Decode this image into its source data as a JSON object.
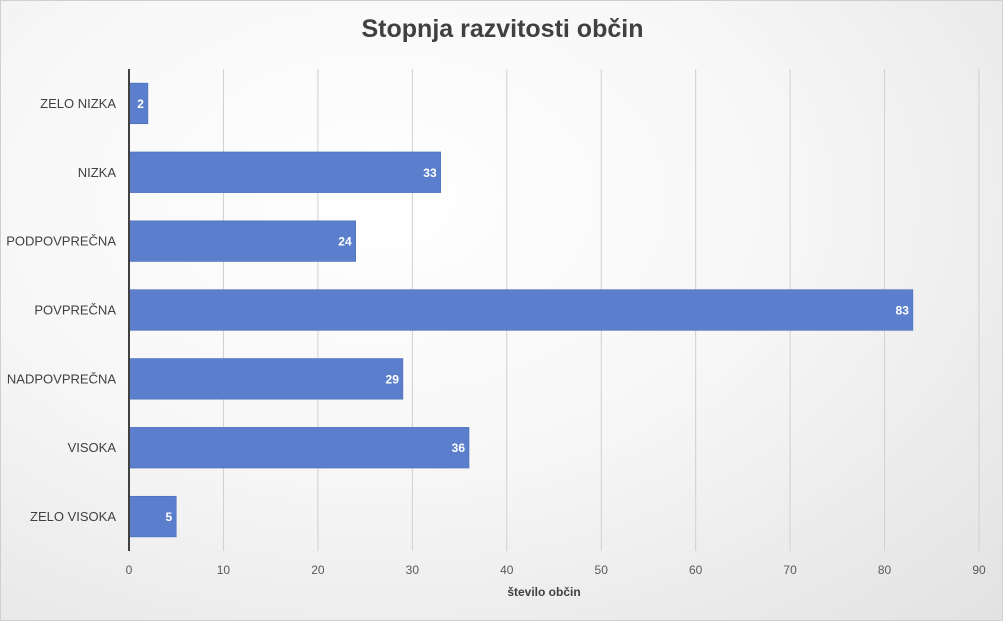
{
  "chart_data": {
    "type": "bar",
    "orientation": "horizontal",
    "title": "Stopnja razvitosti občin",
    "xlabel": "število občin",
    "ylabel": "",
    "categories": [
      "ZELO NIZKA",
      "NIZKA",
      "PODPOVPREČNA",
      "POVPREČNA",
      "NADPOVPREČNA",
      "VISOKA",
      "ZELO VISOKA"
    ],
    "values": [
      2,
      33,
      24,
      83,
      29,
      36,
      5
    ],
    "xlim": [
      0,
      90
    ],
    "xticks": [
      0,
      10,
      20,
      30,
      40,
      50,
      60,
      70,
      80,
      90
    ],
    "grid": "vertical",
    "data_labels": true,
    "legend": "none",
    "colors": {
      "bar": "#5b7fcc",
      "bar_edge": "#4a6cb8",
      "grid": "#d0d0d0",
      "axis": "#404040"
    }
  }
}
